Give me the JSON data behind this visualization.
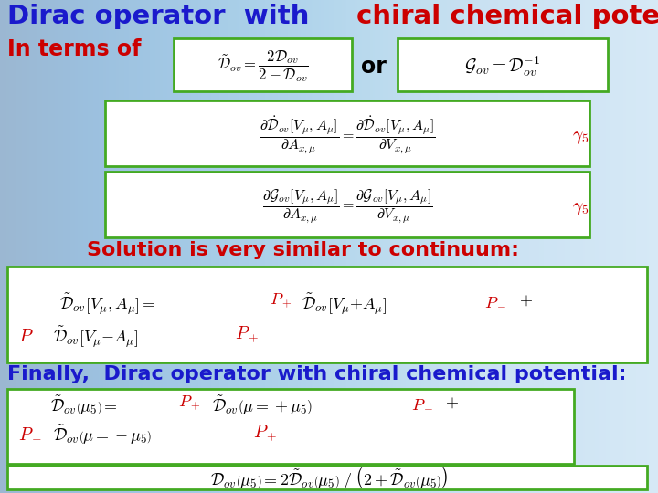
{
  "bg_top": "#cce4f4",
  "bg_bottom": "#e8f4fc",
  "blue": "#1a1acc",
  "red": "#cc0000",
  "green": "#44aa22",
  "black": "#000000",
  "white": "#ffffff",
  "title_blue_text": "Dirac operator  with ",
  "title_red_text": "chiral chemical potential",
  "interms_text": "In terms of",
  "solution_text": "Solution is very similar to continuum:",
  "finally_text": "Finally,  Dirac operator with chiral chemical potential:"
}
